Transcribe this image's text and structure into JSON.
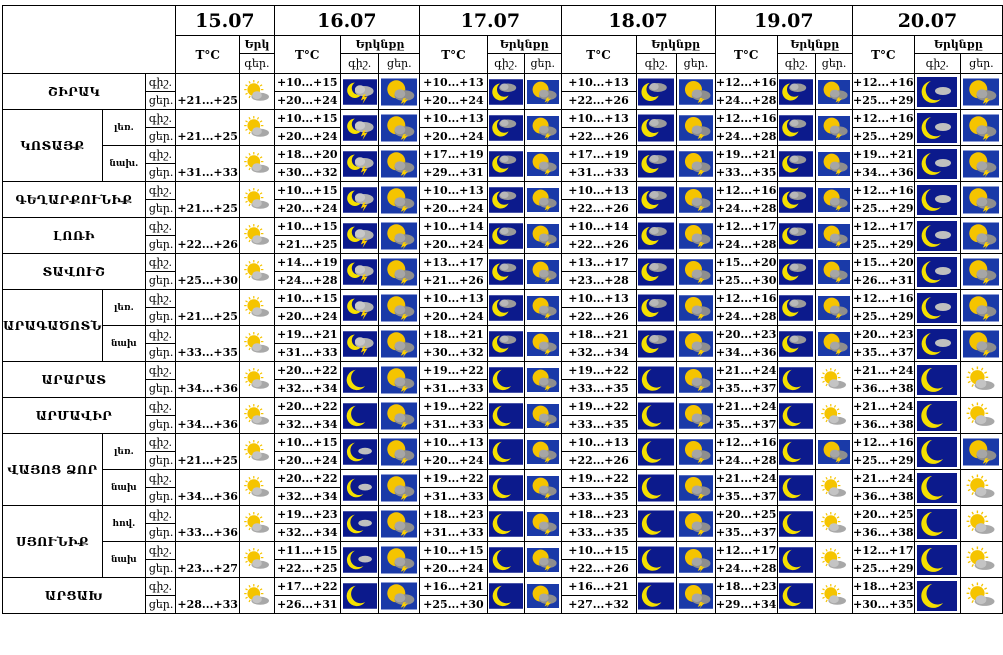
{
  "dates": [
    "15.07",
    "16.07",
    "17.07",
    "18.07",
    "19.07",
    "20.07"
  ],
  "header": {
    "temp_label": "T°C",
    "sky_label_short": "Երկ",
    "sky_label": "Երկնքը",
    "day_night_short": "գեր.",
    "night_label": "գիշ.",
    "day_label": "ցեր."
  },
  "colors": {
    "night_bg": "#0c1a8c",
    "sun": "#f5c400",
    "moon": "#f5e000",
    "cloud": "#9a9a9a",
    "lightning": "#ffd200"
  },
  "regions": [
    {
      "name": "ՇԻՐԱԿ",
      "rows": [
        {
          "sub": "",
          "t15": "+21...+25",
          "days": [
            {
              "n": "+10...+15",
              "d": "+20...+24",
              "ni": "storm-night",
              "di": "storm-day"
            },
            {
              "n": "+10...+13",
              "d": "+20...+24",
              "ni": "cloud-night",
              "di": "storm-day"
            },
            {
              "n": "+10...+13",
              "d": "+22...+26",
              "ni": "cloud-night",
              "di": "storm-day"
            },
            {
              "n": "+12...+16",
              "d": "+24...+28",
              "ni": "cloud-night",
              "di": "storm-day"
            },
            {
              "n": "+12...+16",
              "d": "+25...+29",
              "ni": "moon-cloud-night",
              "di": "storm-day"
            }
          ]
        }
      ]
    },
    {
      "name": "ԿՈՏԱՅՔ",
      "rows": [
        {
          "sub": "լեռ.",
          "t15": "+21...+25",
          "days": [
            {
              "n": "+10...+15",
              "d": "+20...+24",
              "ni": "storm-night",
              "di": "storm-day"
            },
            {
              "n": "+10...+13",
              "d": "+20...+24",
              "ni": "cloud-night",
              "di": "storm-day"
            },
            {
              "n": "+10...+13",
              "d": "+22...+26",
              "ni": "cloud-night",
              "di": "storm-day"
            },
            {
              "n": "+12...+16",
              "d": "+24...+28",
              "ni": "cloud-night",
              "di": "storm-day"
            },
            {
              "n": "+12...+16",
              "d": "+25...+29",
              "ni": "moon-cloud-night",
              "di": "storm-day"
            }
          ]
        },
        {
          "sub": "նախ.",
          "t15": "+31...+33",
          "days": [
            {
              "n": "+18...+20",
              "d": "+30...+32",
              "ni": "storm-night",
              "di": "storm-day"
            },
            {
              "n": "+17...+19",
              "d": "+29...+31",
              "ni": "cloud-night",
              "di": "storm-day"
            },
            {
              "n": "+17...+19",
              "d": "+31...+33",
              "ni": "cloud-night",
              "di": "storm-day"
            },
            {
              "n": "+19...+21",
              "d": "+33...+35",
              "ni": "cloud-night",
              "di": "storm-day"
            },
            {
              "n": "+19...+21",
              "d": "+34...+36",
              "ni": "moon-cloud-night",
              "di": "storm-day"
            }
          ]
        }
      ]
    },
    {
      "name": "ԳԵՂԱՐՔՈՒՆԻՔ",
      "rows": [
        {
          "sub": "",
          "t15": "+21...+25",
          "days": [
            {
              "n": "+10...+15",
              "d": "+20...+24",
              "ni": "storm-night",
              "di": "storm-day"
            },
            {
              "n": "+10...+13",
              "d": "+20...+24",
              "ni": "cloud-night",
              "di": "storm-day"
            },
            {
              "n": "+10...+13",
              "d": "+22...+26",
              "ni": "cloud-night",
              "di": "storm-day"
            },
            {
              "n": "+12...+16",
              "d": "+24...+28",
              "ni": "cloud-night",
              "di": "storm-day"
            },
            {
              "n": "+12...+16",
              "d": "+25...+29",
              "ni": "moon-cloud-night",
              "di": "storm-day"
            }
          ]
        }
      ]
    },
    {
      "name": "ԼՈՌԻ",
      "rows": [
        {
          "sub": "",
          "t15": "+22...+26",
          "days": [
            {
              "n": "+10...+15",
              "d": "+21...+25",
              "ni": "storm-night",
              "di": "storm-day"
            },
            {
              "n": "+10...+14",
              "d": "+20...+24",
              "ni": "cloud-night",
              "di": "storm-day"
            },
            {
              "n": "+10...+14",
              "d": "+22...+26",
              "ni": "cloud-night",
              "di": "storm-day"
            },
            {
              "n": "+12...+17",
              "d": "+24...+28",
              "ni": "cloud-night",
              "di": "storm-day"
            },
            {
              "n": "+12...+17",
              "d": "+25...+29",
              "ni": "moon-cloud-night",
              "di": "storm-day"
            }
          ]
        }
      ]
    },
    {
      "name": "ՏԱՎՈՒՇ",
      "rows": [
        {
          "sub": "",
          "t15": "+25...+30",
          "days": [
            {
              "n": "+14...+19",
              "d": "+24...+28",
              "ni": "storm-night",
              "di": "storm-day"
            },
            {
              "n": "+13...+17",
              "d": "+21...+26",
              "ni": "cloud-night",
              "di": "storm-day"
            },
            {
              "n": "+13...+17",
              "d": "+23...+28",
              "ni": "cloud-night",
              "di": "storm-day"
            },
            {
              "n": "+15...+20",
              "d": "+25...+30",
              "ni": "cloud-night",
              "di": "storm-day"
            },
            {
              "n": "+15...+20",
              "d": "+26...+31",
              "ni": "moon-cloud-night",
              "di": "storm-day"
            }
          ]
        }
      ]
    },
    {
      "name": "ԱՐԱԳԱԾՈՏՆ",
      "rows": [
        {
          "sub": "լեռ.",
          "t15": "+21...+25",
          "days": [
            {
              "n": "+10...+15",
              "d": "+20...+24",
              "ni": "storm-night",
              "di": "storm-day"
            },
            {
              "n": "+10...+13",
              "d": "+20...+24",
              "ni": "cloud-night",
              "di": "storm-day"
            },
            {
              "n": "+10...+13",
              "d": "+22...+26",
              "ni": "cloud-night",
              "di": "storm-day"
            },
            {
              "n": "+12...+16",
              "d": "+24...+28",
              "ni": "cloud-night",
              "di": "storm-day"
            },
            {
              "n": "+12...+16",
              "d": "+25...+29",
              "ni": "moon-cloud-night",
              "di": "storm-day"
            }
          ]
        },
        {
          "sub": "նախ",
          "t15": "+33...+35",
          "days": [
            {
              "n": "+19...+21",
              "d": "+31...+33",
              "ni": "storm-night",
              "di": "storm-day"
            },
            {
              "n": "+18...+21",
              "d": "+30...+32",
              "ni": "cloud-night",
              "di": "storm-day"
            },
            {
              "n": "+18...+21",
              "d": "+32...+34",
              "ni": "cloud-night",
              "di": "storm-day"
            },
            {
              "n": "+20...+23",
              "d": "+34...+36",
              "ni": "cloud-night",
              "di": "storm-day"
            },
            {
              "n": "+20...+23",
              "d": "+35...+37",
              "ni": "moon-cloud-night",
              "di": "storm-day"
            }
          ]
        }
      ]
    },
    {
      "name": "ԱՐԱՐԱՏ",
      "rows": [
        {
          "sub": "",
          "t15": "+34...+36",
          "days": [
            {
              "n": "+20...+22",
              "d": "+32...+34",
              "ni": "moon-night",
              "di": "storm-day"
            },
            {
              "n": "+19...+22",
              "d": "+31...+33",
              "ni": "moon-night",
              "di": "storm-day"
            },
            {
              "n": "+19...+22",
              "d": "+33...+35",
              "ni": "moon-night",
              "di": "storm-day"
            },
            {
              "n": "+21...+24",
              "d": "+35...+37",
              "ni": "moon-night",
              "di": "partly-sunny"
            },
            {
              "n": "+21...+24",
              "d": "+36...+38",
              "ni": "moon-night",
              "di": "partly-sunny"
            }
          ]
        }
      ]
    },
    {
      "name": "ԱՐՄԱՎԻՐ",
      "rows": [
        {
          "sub": "",
          "t15": "+34...+36",
          "days": [
            {
              "n": "+20...+22",
              "d": "+32...+34",
              "ni": "moon-night",
              "di": "storm-day"
            },
            {
              "n": "+19...+22",
              "d": "+31...+33",
              "ni": "moon-night",
              "di": "storm-day"
            },
            {
              "n": "+19...+22",
              "d": "+33...+35",
              "ni": "moon-night",
              "di": "storm-day"
            },
            {
              "n": "+21...+24",
              "d": "+35...+37",
              "ni": "moon-night",
              "di": "partly-sunny"
            },
            {
              "n": "+21...+24",
              "d": "+36...+38",
              "ni": "moon-night",
              "di": "partly-sunny"
            }
          ]
        }
      ]
    },
    {
      "name": "ՎԱՅՈՑ ՁՈՐ",
      "rows": [
        {
          "sub": "լեռ.",
          "t15": "+21...+25",
          "days": [
            {
              "n": "+10...+15",
              "d": "+20...+24",
              "ni": "moon-cloud-night",
              "di": "storm-day"
            },
            {
              "n": "+10...+13",
              "d": "+20...+24",
              "ni": "moon-night",
              "di": "storm-day"
            },
            {
              "n": "+10...+13",
              "d": "+22...+26",
              "ni": "moon-night",
              "di": "storm-day"
            },
            {
              "n": "+12...+16",
              "d": "+24...+28",
              "ni": "moon-night",
              "di": "storm-day"
            },
            {
              "n": "+12...+16",
              "d": "+25...+29",
              "ni": "moon-night",
              "di": "storm-day"
            }
          ]
        },
        {
          "sub": "նախ",
          "t15": "+34...+36",
          "days": [
            {
              "n": "+20...+22",
              "d": "+32...+34",
              "ni": "moon-cloud-night",
              "di": "storm-day"
            },
            {
              "n": "+19...+22",
              "d": "+31...+33",
              "ni": "moon-night",
              "di": "storm-day"
            },
            {
              "n": "+19...+22",
              "d": "+33...+35",
              "ni": "moon-night",
              "di": "storm-day"
            },
            {
              "n": "+21...+24",
              "d": "+35...+37",
              "ni": "moon-night",
              "di": "partly-sunny"
            },
            {
              "n": "+21...+24",
              "d": "+36...+38",
              "ni": "moon-night",
              "di": "partly-sunny"
            }
          ]
        }
      ]
    },
    {
      "name": "ՍՅՈՒՆԻՔ",
      "rows": [
        {
          "sub": "հով.",
          "t15": "+33...+36",
          "days": [
            {
              "n": "+19...+23",
              "d": "+32...+34",
              "ni": "moon-cloud-night",
              "di": "storm-day"
            },
            {
              "n": "+18...+23",
              "d": "+31...+33",
              "ni": "moon-night",
              "di": "storm-day"
            },
            {
              "n": "+18...+23",
              "d": "+33...+35",
              "ni": "moon-night",
              "di": "storm-day"
            },
            {
              "n": "+20...+25",
              "d": "+35...+37",
              "ni": "moon-night",
              "di": "partly-sunny"
            },
            {
              "n": "+20...+25",
              "d": "+36...+38",
              "ni": "moon-night",
              "di": "partly-sunny"
            }
          ]
        },
        {
          "sub": "նախ",
          "t15": "+23...+27",
          "days": [
            {
              "n": "+11...+15",
              "d": "+22...+25",
              "ni": "moon-cloud-night",
              "di": "storm-day"
            },
            {
              "n": "+10...+15",
              "d": "+20...+24",
              "ni": "moon-night",
              "di": "storm-day"
            },
            {
              "n": "+10...+15",
              "d": "+22...+26",
              "ni": "moon-night",
              "di": "storm-day"
            },
            {
              "n": "+12...+17",
              "d": "+24...+28",
              "ni": "moon-night",
              "di": "partly-sunny"
            },
            {
              "n": "+12...+17",
              "d": "+25...+29",
              "ni": "moon-night",
              "di": "partly-sunny"
            }
          ]
        }
      ]
    },
    {
      "name": "ԱՐՑԱԽ",
      "rows": [
        {
          "sub": "",
          "t15": "+28...+33",
          "days": [
            {
              "n": "+17...+22",
              "d": "+26...+31",
              "ni": "moon-night",
              "di": "storm-day"
            },
            {
              "n": "+16...+21",
              "d": "+25...+30",
              "ni": "moon-night",
              "di": "storm-day"
            },
            {
              "n": "+16...+21",
              "d": "+27...+32",
              "ni": "moon-night",
              "di": "storm-day"
            },
            {
              "n": "+18...+23",
              "d": "+29...+34",
              "ni": "moon-night",
              "di": "partly-sunny"
            },
            {
              "n": "+18...+23",
              "d": "+30...+35",
              "ni": "moon-night",
              "di": "partly-sunny"
            }
          ]
        }
      ]
    }
  ]
}
